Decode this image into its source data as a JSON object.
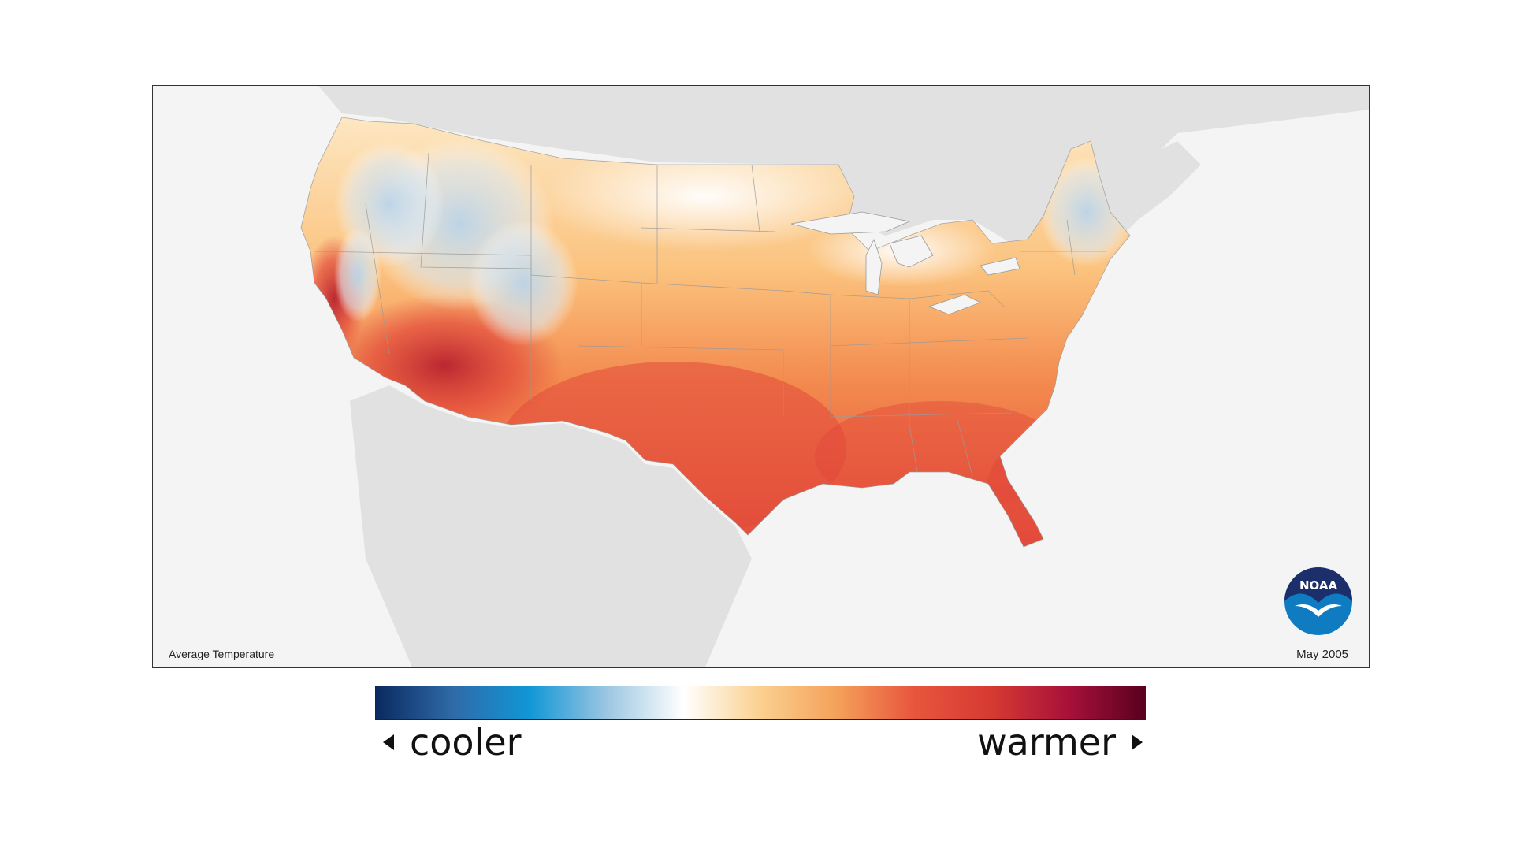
{
  "map": {
    "title": "Average Temperature",
    "date": "May 2005",
    "logo_text": "NOAA",
    "description_region": "contiguous United States",
    "colors": {
      "ocean": "#f4f4f4",
      "neighbor_land": "#e1e1e1",
      "border_lines": "#9a9a9a",
      "cool": "#b9d4ea",
      "white": "#ffffff",
      "warm_light": "#fbcf8b",
      "warm_mid": "#f38a4e",
      "warm_hot": "#e2483a",
      "warm_max": "#b7222f"
    }
  },
  "legend": {
    "cooler_label": "cooler",
    "warmer_label": "warmer",
    "gradient": [
      "#0a2a60",
      "#2f6aa8",
      "#1097d6",
      "#9cc6e2",
      "#ffffff",
      "#fbd08f",
      "#f4a15a",
      "#e8553d",
      "#d63a32",
      "#a8113a",
      "#5a0020"
    ]
  }
}
